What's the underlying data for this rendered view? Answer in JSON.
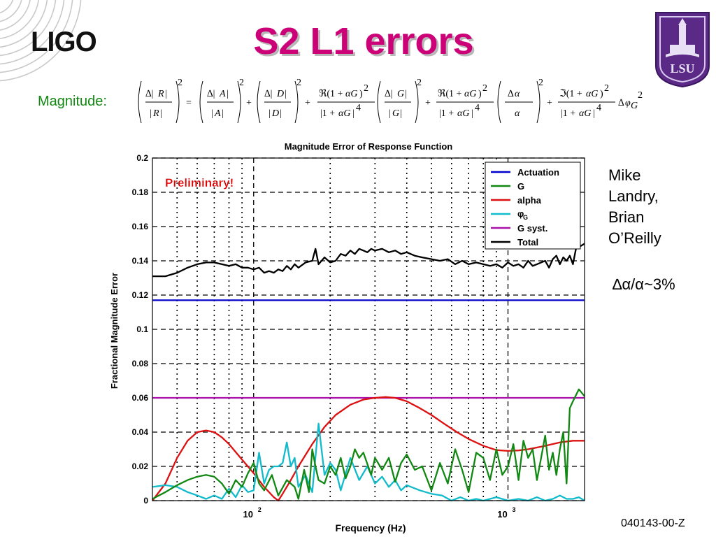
{
  "slide": {
    "logo": "LIGO",
    "title": "S2 L1 errors",
    "magnitude_label": "Magnitude:",
    "authors": [
      "Mike",
      "Landry,",
      "Brian",
      "O’Reilly"
    ],
    "alpha_note": "∆α/α~3%",
    "footer_code": "040143-00-Z",
    "seal_text": "LSU"
  },
  "colors": {
    "title": "#cc0077",
    "magnitude_label": "#118811",
    "preliminary": "#dd0000"
  },
  "icons": [
    "ligo-rings-icon",
    "lsu-seal-icon"
  ],
  "chart_data": {
    "type": "line",
    "title": "Magnitude Error of Response Function",
    "xlabel": "Frequency (Hz)",
    "ylabel": "Fractional Magnitude Error",
    "x_scale": "log",
    "xlim": [
      40,
      2000
    ],
    "ylim": [
      0,
      0.2
    ],
    "yticks": [
      "0",
      "0.02",
      "0.04",
      "0.06",
      "0.08",
      "0.1",
      "0.12",
      "0.14",
      "0.16",
      "0.18",
      "0.2"
    ],
    "xticks": [
      {
        "value": 100,
        "base": "10",
        "exp": "2"
      },
      {
        "value": 1000,
        "base": "10",
        "exp": "3"
      }
    ],
    "grid": true,
    "legend_position": "top-right",
    "annotation": "Preliminary!",
    "series": [
      {
        "name": "Actuation",
        "color": "#0000cc",
        "x": [
          40,
          2000
        ],
        "y": [
          0.117,
          0.117
        ]
      },
      {
        "name": "G",
        "color": "#118811",
        "x": [
          40,
          45,
          50,
          55,
          60,
          65,
          70,
          75,
          80,
          85,
          90,
          95,
          100,
          105,
          110,
          118,
          125,
          135,
          145,
          150,
          158,
          165,
          170,
          175,
          180,
          190,
          200,
          210,
          220,
          230,
          240,
          250,
          260,
          270,
          290,
          300,
          320,
          340,
          360,
          380,
          400,
          430,
          460,
          500,
          540,
          580,
          620,
          660,
          700,
          750,
          800,
          850,
          900,
          950,
          1000,
          1050,
          1100,
          1150,
          1200,
          1250,
          1300,
          1350,
          1400,
          1450,
          1500,
          1550,
          1600,
          1650,
          1700,
          1750,
          1800,
          1900,
          2000
        ],
        "y": [
          0.001,
          0.005,
          0.009,
          0.012,
          0.014,
          0.015,
          0.014,
          0.01,
          0.004,
          0.012,
          0.008,
          0.016,
          0.022,
          0.01,
          0.006,
          0.015,
          0.003,
          0.012,
          0.008,
          0.001,
          0.018,
          0.005,
          0.03,
          0.02,
          0.012,
          0.01,
          0.02,
          0.015,
          0.025,
          0.013,
          0.02,
          0.03,
          0.025,
          0.028,
          0.015,
          0.025,
          0.018,
          0.025,
          0.011,
          0.022,
          0.027,
          0.018,
          0.02,
          0.006,
          0.022,
          0.01,
          0.03,
          0.018,
          0.005,
          0.028,
          0.025,
          0.012,
          0.03,
          0.015,
          0.02,
          0.033,
          0.012,
          0.035,
          0.025,
          0.03,
          0.012,
          0.025,
          0.038,
          0.018,
          0.028,
          0.015,
          0.03,
          0.04,
          0.01,
          0.054,
          0.058,
          0.065,
          0.061
        ]
      },
      {
        "name": "alpha",
        "color": "#dd1111",
        "x": [
          40,
          45,
          50,
          55,
          60,
          65,
          70,
          75,
          80,
          90,
          100,
          110,
          120,
          125,
          130,
          140,
          150,
          170,
          190,
          210,
          240,
          270,
          300,
          330,
          360,
          400,
          450,
          500,
          560,
          630,
          700,
          800,
          900,
          1000,
          1100,
          1200,
          1400,
          1600,
          1800,
          2000
        ],
        "y": [
          0.0,
          0.01,
          0.025,
          0.035,
          0.04,
          0.041,
          0.04,
          0.037,
          0.033,
          0.024,
          0.016,
          0.008,
          0.002,
          0.0,
          0.004,
          0.012,
          0.02,
          0.033,
          0.043,
          0.05,
          0.056,
          0.059,
          0.06,
          0.0605,
          0.06,
          0.058,
          0.054,
          0.05,
          0.045,
          0.04,
          0.036,
          0.032,
          0.0295,
          0.029,
          0.0293,
          0.03,
          0.032,
          0.034,
          0.035,
          0.035
        ]
      },
      {
        "name": "φ_G",
        "color": "#11bbcc",
        "x": [
          40,
          45,
          50,
          55,
          60,
          65,
          70,
          75,
          80,
          85,
          90,
          95,
          100,
          105,
          110,
          115,
          120,
          125,
          130,
          135,
          140,
          145,
          150,
          160,
          170,
          180,
          190,
          200,
          210,
          220,
          240,
          260,
          280,
          300,
          320,
          340,
          360,
          380,
          400,
          450,
          500,
          550,
          600,
          650,
          700,
          750,
          800,
          900,
          1000,
          1100,
          1200,
          1300,
          1400,
          1500,
          1600,
          1700,
          1800,
          1900,
          2000
        ],
        "y": [
          0.008,
          0.009,
          0.008,
          0.005,
          0.003,
          0.001,
          0.003,
          0.001,
          0.007,
          0.002,
          0.009,
          0.005,
          0.006,
          0.028,
          0.01,
          0.018,
          0.02,
          0.02,
          0.022,
          0.034,
          0.02,
          0.025,
          0.008,
          0.015,
          0.005,
          0.045,
          0.015,
          0.022,
          0.018,
          0.006,
          0.025,
          0.012,
          0.02,
          0.01,
          0.014,
          0.008,
          0.012,
          0.006,
          0.009,
          0.006,
          0.004,
          0.003,
          0.0,
          0.002,
          0.0,
          0.001,
          0.0,
          0.002,
          0.0,
          0.001,
          0.0,
          0.002,
          0.0,
          0.001,
          0.003,
          0.001,
          0.001,
          0.002,
          0.0
        ]
      },
      {
        "name": "G syst.",
        "color": "#aa11aa",
        "x": [
          40,
          2000
        ],
        "y": [
          0.06,
          0.06
        ]
      },
      {
        "name": "Total",
        "color": "#000000",
        "x": [
          40,
          45,
          50,
          55,
          60,
          65,
          70,
          75,
          80,
          85,
          90,
          95,
          100,
          105,
          110,
          115,
          120,
          125,
          130,
          135,
          140,
          145,
          150,
          160,
          170,
          175,
          180,
          190,
          200,
          210,
          220,
          230,
          240,
          250,
          260,
          270,
          280,
          290,
          300,
          320,
          340,
          360,
          380,
          400,
          430,
          460,
          500,
          540,
          580,
          620,
          660,
          700,
          750,
          800,
          850,
          900,
          950,
          1000,
          1050,
          1100,
          1150,
          1200,
          1250,
          1300,
          1400,
          1450,
          1500,
          1550,
          1600,
          1650,
          1700,
          1750,
          1800,
          1850,
          1900,
          2000
        ],
        "y": [
          0.131,
          0.131,
          0.133,
          0.136,
          0.138,
          0.139,
          0.139,
          0.138,
          0.137,
          0.138,
          0.136,
          0.136,
          0.135,
          0.136,
          0.133,
          0.134,
          0.133,
          0.135,
          0.134,
          0.137,
          0.135,
          0.138,
          0.136,
          0.139,
          0.14,
          0.147,
          0.138,
          0.142,
          0.139,
          0.14,
          0.144,
          0.143,
          0.146,
          0.144,
          0.147,
          0.146,
          0.145,
          0.147,
          0.146,
          0.147,
          0.145,
          0.146,
          0.144,
          0.145,
          0.143,
          0.142,
          0.141,
          0.14,
          0.141,
          0.138,
          0.14,
          0.138,
          0.139,
          0.138,
          0.137,
          0.138,
          0.136,
          0.139,
          0.137,
          0.138,
          0.136,
          0.14,
          0.137,
          0.138,
          0.14,
          0.136,
          0.141,
          0.143,
          0.138,
          0.142,
          0.14,
          0.143,
          0.138,
          0.147,
          0.148,
          0.15
        ]
      }
    ]
  }
}
